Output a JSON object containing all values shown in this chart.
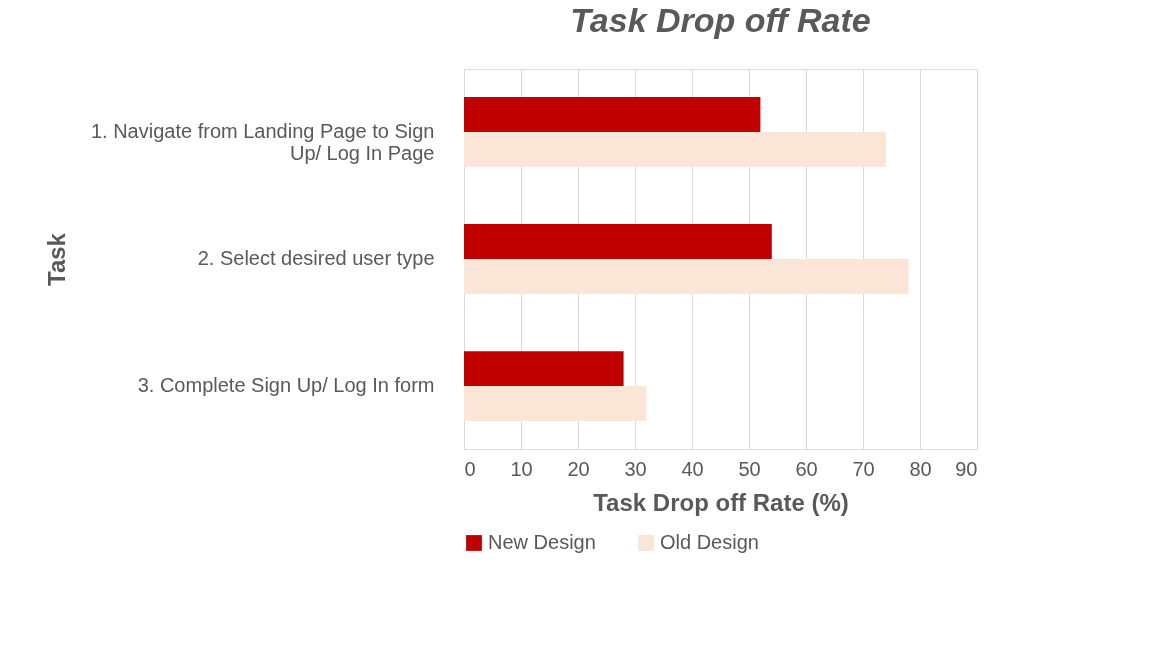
{
  "chart_data": {
    "type": "bar",
    "orientation": "horizontal",
    "title": "Task Drop off Rate",
    "xlabel": "Task Drop off Rate (%)",
    "ylabel": "Task",
    "categories": [
      "1. Navigate from Landing Page to Sign Up/ Log In Page",
      "2. Select desired user type",
      "3. Complete Sign Up/ Log In form"
    ],
    "series": [
      {
        "name": "New Design",
        "color": "#c00000",
        "values": [
          52,
          54,
          28
        ]
      },
      {
        "name": "Old Design",
        "color": "#fbe5d6",
        "values": [
          74,
          78,
          32
        ]
      }
    ],
    "xlim": [
      0,
      90
    ],
    "xticks": [
      0,
      10,
      20,
      30,
      40,
      50,
      60,
      70,
      80,
      90
    ],
    "grid": "x",
    "legend": "bottom"
  }
}
